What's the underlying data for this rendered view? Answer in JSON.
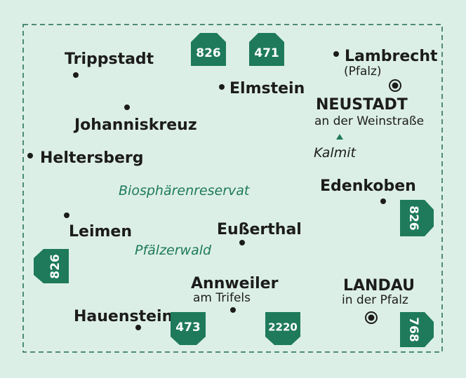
{
  "places": [
    {
      "name": "Trippstadt"
    },
    {
      "name": "Johanniskreuz"
    },
    {
      "name": "Heltersberg"
    },
    {
      "name": "Leimen"
    },
    {
      "name": "Hauenstein"
    },
    {
      "name": "Elmstein"
    },
    {
      "name": "Lambrecht",
      "sub": "(Pfalz)"
    },
    {
      "name": "NEUSTADT",
      "sub": "an der Weinstraße"
    },
    {
      "name": "Edenkoben"
    },
    {
      "name": "Eußerthal"
    },
    {
      "name": "Annweiler",
      "sub": "am Trifels"
    },
    {
      "name": "LANDAU",
      "sub": "in der Pfalz"
    }
  ],
  "peak": "Kalmit",
  "regions": [
    "Biosphärenreservat",
    "Pfälzerwald"
  ],
  "sheets": [
    "826",
    "471",
    "826",
    "826",
    "473",
    "2220",
    "768"
  ]
}
